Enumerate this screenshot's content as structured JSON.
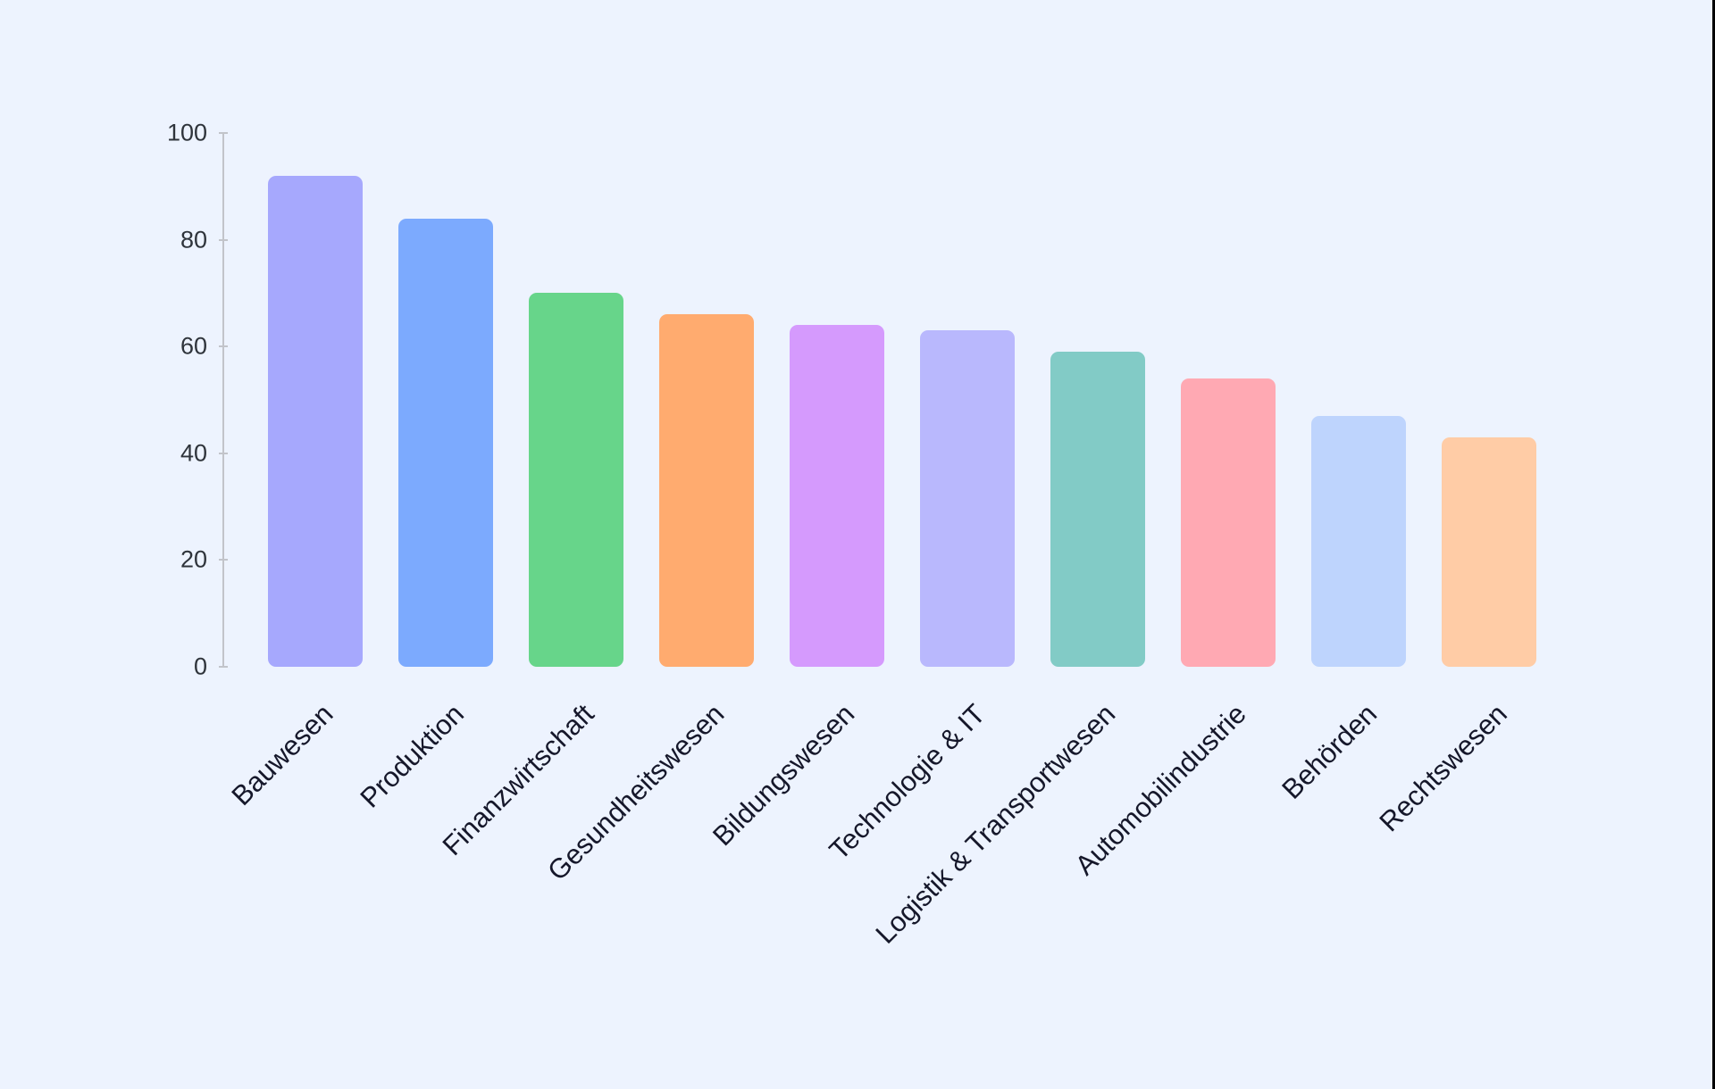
{
  "chart_data": {
    "type": "bar",
    "title": "",
    "xlabel": "",
    "ylabel": "",
    "ylim": [
      0,
      100
    ],
    "yticks": [
      0,
      20,
      40,
      60,
      80,
      100
    ],
    "grid": false,
    "legend": null,
    "categories": [
      "Bauwesen",
      "Produktion",
      "Finanzwirtschaft",
      "Gesundheitswesen",
      "Bildungswesen",
      "Technologie & IT",
      "Logistik & Transportwesen",
      "Automobilindustrie",
      "Behörden",
      "Rechtswesen"
    ],
    "values": [
      92,
      84,
      70,
      66,
      64,
      63,
      59,
      54,
      47,
      43
    ],
    "colors": [
      "#a6a8fd",
      "#7caafe",
      "#67d58a",
      "#ffab6f",
      "#d59afd",
      "#b9b8fd",
      "#82cbc6",
      "#ffa9b3",
      "#bed4fd",
      "#ffcca6"
    ]
  },
  "axis": {
    "tick_labels": [
      "0",
      "20",
      "40",
      "60",
      "80",
      "100"
    ]
  }
}
